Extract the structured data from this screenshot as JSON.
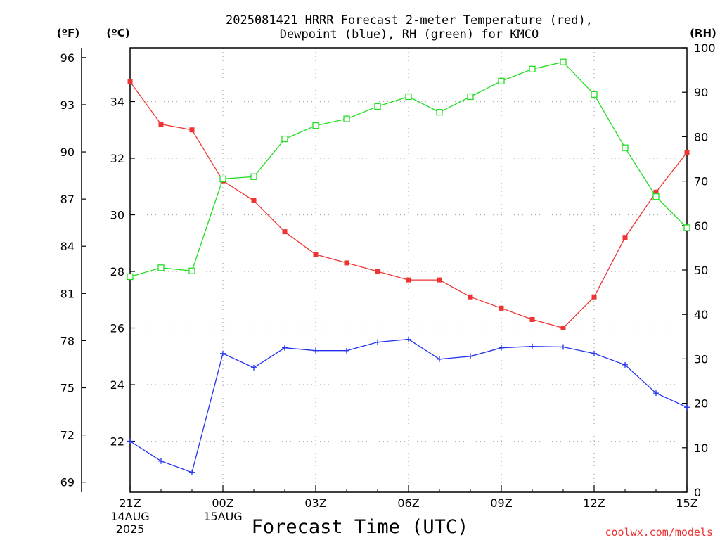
{
  "title_line1": "2025081421 HRRR Forecast 2-meter Temperature (red),",
  "title_line2": "Dewpoint (blue), RH (green) for KMCO",
  "credit": "coolwx.com/models",
  "chart_data": {
    "type": "line",
    "title": "2025081421 HRRR Forecast 2-meter Temperature (red), Dewpoint (blue), RH (green) for KMCO",
    "xlabel": "Forecast Time (UTC)",
    "x_hours": [
      0,
      1,
      2,
      3,
      4,
      5,
      6,
      7,
      8,
      9,
      10,
      11,
      12,
      13,
      14,
      15,
      16,
      17,
      18
    ],
    "xlim": [
      0,
      18
    ],
    "x_ticks": [
      {
        "hour": 0,
        "label": "21Z",
        "date1": "14AUG",
        "date2": "2025"
      },
      {
        "hour": 3,
        "label": "00Z",
        "date1": "15AUG",
        "date2": ""
      },
      {
        "hour": 6,
        "label": "03Z",
        "date1": "",
        "date2": ""
      },
      {
        "hour": 9,
        "label": "06Z",
        "date1": "",
        "date2": ""
      },
      {
        "hour": 12,
        "label": "09Z",
        "date1": "",
        "date2": ""
      },
      {
        "hour": 15,
        "label": "12Z",
        "date1": "",
        "date2": ""
      },
      {
        "hour": 18,
        "label": "15Z",
        "date1": "",
        "date2": ""
      }
    ],
    "left_axis_f": {
      "unit": "(ºF)",
      "ticks": [
        "96",
        "93",
        "90",
        "87",
        "84",
        "81",
        "78",
        "75",
        "72",
        "69"
      ]
    },
    "left_axis_c": {
      "unit": "(ºC)",
      "ticks": [
        "34",
        "32",
        "30",
        "28",
        "26",
        "24",
        "22"
      ],
      "ylim": [
        20.2,
        35.9
      ]
    },
    "right_axis_rh": {
      "unit": "(RH)",
      "ticks": [
        "100",
        "90",
        "80",
        "70",
        "60",
        "50",
        "40",
        "30",
        "20",
        "10",
        "0"
      ],
      "ylim": [
        0,
        100
      ]
    },
    "grid": true,
    "series": [
      {
        "axis": "c",
        "color": "#ee3333",
        "marker": "filled-square",
        "values": [
          34.7,
          33.2,
          33.0,
          31.2,
          30.5,
          29.4,
          28.6,
          28.3,
          28.0,
          27.7,
          27.7,
          27.1,
          26.7,
          26.3,
          26.0,
          27.1,
          29.2,
          30.8,
          32.2
        ]
      },
      {
        "axis": "c",
        "color": "#2233ee",
        "marker": "plus",
        "values": [
          22.0,
          21.3,
          20.9,
          25.1,
          24.6,
          25.3,
          25.2,
          25.2,
          25.5,
          25.6,
          24.9,
          25.0,
          25.3,
          25.35,
          25.33,
          25.1,
          24.7,
          23.7,
          23.2
        ]
      },
      {
        "axis": "rh",
        "color": "#22dd22",
        "marker": "open-square",
        "values": [
          48.5,
          50.5,
          49.8,
          70.5,
          71.0,
          79.5,
          82.5,
          84.0,
          86.8,
          89.0,
          85.5,
          89.0,
          92.5,
          95.2,
          96.8,
          89.5,
          77.5,
          66.5,
          59.5
        ]
      }
    ]
  }
}
